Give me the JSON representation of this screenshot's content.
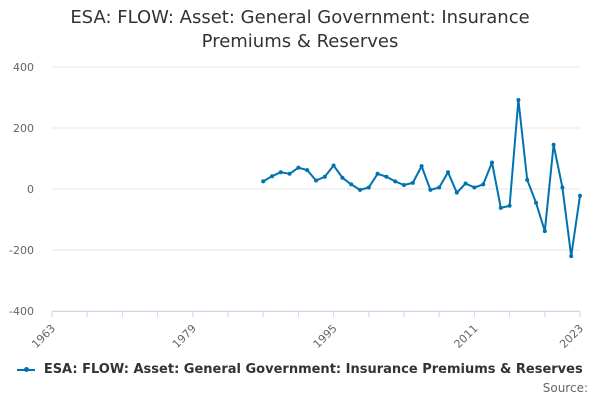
{
  "chart_data": {
    "type": "line",
    "title_lines": [
      "ESA: FLOW: Asset: General Government: Insurance",
      "Premiums & Reserves"
    ],
    "xlabel": "",
    "ylabel": "",
    "xlim": [
      1963,
      2023
    ],
    "ylim": [
      -400,
      400
    ],
    "x_ticks": [
      1963,
      1979,
      1995,
      2011,
      2023
    ],
    "y_ticks": [
      -400,
      -200,
      0,
      200,
      400
    ],
    "grid": true,
    "legend_position": "bottom",
    "series": [
      {
        "name": "ESA: FLOW: Asset: General Government: Insurance Premiums & Reserves",
        "color": "#0073ae",
        "x": [
          1987,
          1988,
          1989,
          1990,
          1991,
          1992,
          1993,
          1994,
          1995,
          1996,
          1997,
          1998,
          1999,
          2000,
          2001,
          2002,
          2003,
          2004,
          2005,
          2006,
          2007,
          2008,
          2009,
          2010,
          2011,
          2012,
          2013,
          2014,
          2015,
          2016,
          2017,
          2018,
          2019,
          2020,
          2021,
          2022,
          2023
        ],
        "values": [
          25,
          42,
          55,
          50,
          70,
          62,
          28,
          40,
          77,
          37,
          15,
          -3,
          5,
          50,
          40,
          25,
          13,
          20,
          75,
          -3,
          5,
          55,
          -12,
          18,
          5,
          15,
          87,
          -62,
          -55,
          292,
          30,
          -45,
          -138,
          145,
          5,
          -220,
          -22
        ]
      }
    ]
  },
  "source_label": "Source:"
}
